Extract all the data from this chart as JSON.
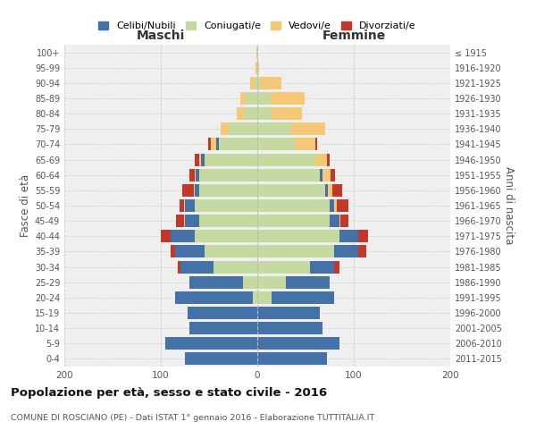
{
  "age_groups": [
    "0-4",
    "5-9",
    "10-14",
    "15-19",
    "20-24",
    "25-29",
    "30-34",
    "35-39",
    "40-44",
    "45-49",
    "50-54",
    "55-59",
    "60-64",
    "65-69",
    "70-74",
    "75-79",
    "80-84",
    "85-89",
    "90-94",
    "95-99",
    "100+"
  ],
  "birth_years": [
    "2011-2015",
    "2006-2010",
    "2001-2005",
    "1996-2000",
    "1991-1995",
    "1986-1990",
    "1981-1985",
    "1976-1980",
    "1971-1975",
    "1966-1970",
    "1961-1965",
    "1956-1960",
    "1951-1955",
    "1946-1950",
    "1941-1945",
    "1936-1940",
    "1931-1935",
    "1926-1930",
    "1921-1925",
    "1916-1920",
    "≤ 1915"
  ],
  "males": {
    "celibi": [
      75,
      95,
      70,
      72,
      80,
      55,
      35,
      30,
      25,
      15,
      10,
      5,
      4,
      3,
      3,
      0,
      0,
      0,
      0,
      0,
      0
    ],
    "coniugati": [
      0,
      0,
      0,
      0,
      5,
      15,
      45,
      55,
      65,
      60,
      65,
      60,
      60,
      55,
      40,
      30,
      14,
      12,
      3,
      1,
      1
    ],
    "vedovi": [
      0,
      0,
      0,
      0,
      0,
      0,
      0,
      0,
      0,
      1,
      1,
      1,
      1,
      2,
      5,
      8,
      7,
      6,
      4,
      1,
      0
    ],
    "divorziati": [
      0,
      0,
      0,
      0,
      0,
      0,
      2,
      5,
      10,
      8,
      5,
      12,
      5,
      5,
      3,
      0,
      0,
      0,
      0,
      0,
      0
    ]
  },
  "females": {
    "nubili": [
      72,
      85,
      68,
      65,
      65,
      45,
      25,
      25,
      20,
      10,
      5,
      3,
      3,
      0,
      0,
      0,
      0,
      0,
      0,
      0,
      0
    ],
    "coniugate": [
      0,
      0,
      0,
      0,
      15,
      30,
      55,
      80,
      85,
      75,
      75,
      70,
      65,
      60,
      40,
      35,
      16,
      14,
      3,
      0,
      0
    ],
    "vedove": [
      0,
      0,
      0,
      0,
      0,
      0,
      0,
      0,
      0,
      1,
      2,
      5,
      8,
      12,
      20,
      35,
      30,
      35,
      22,
      2,
      1
    ],
    "divorziate": [
      0,
      0,
      0,
      0,
      0,
      0,
      5,
      8,
      10,
      8,
      12,
      10,
      5,
      3,
      2,
      0,
      0,
      0,
      0,
      0,
      0
    ]
  },
  "colors": {
    "celibi": "#4472a8",
    "coniugati": "#c5d9a0",
    "vedovi": "#f5c878",
    "divorziati": "#c0392b"
  },
  "title": "Popolazione per età, sesso e stato civile - 2016",
  "subtitle": "COMUNE DI ROSCIANO (PE) - Dati ISTAT 1° gennaio 2016 - Elaborazione TUTTITALIA.IT",
  "xlabel_maschi": "Maschi",
  "xlabel_femmine": "Femmine",
  "ylabel_left": "Fasce di età",
  "ylabel_right": "Anni di nascita",
  "xlim": 200,
  "background_color": "#ffffff",
  "plot_bg_color": "#efefef",
  "grid_color": "#cccccc"
}
